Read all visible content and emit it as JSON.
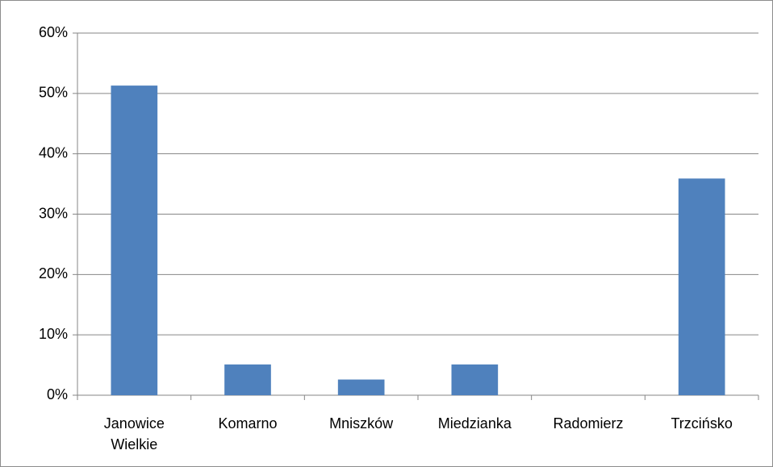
{
  "chart_data": {
    "type": "bar",
    "categories": [
      "Janowice Wielkie",
      "Komarno",
      "Mniszków",
      "Miedzianka",
      "Radomierz",
      "Trzcińsko"
    ],
    "values": [
      51.3,
      5.1,
      2.6,
      5.1,
      0,
      35.9
    ],
    "color": "#4f81bd",
    "ylim": [
      0,
      60
    ],
    "yticks": [
      {
        "value": 0,
        "label": "0%"
      },
      {
        "value": 10,
        "label": "10%"
      },
      {
        "value": 20,
        "label": "20%"
      },
      {
        "value": 30,
        "label": "30%"
      },
      {
        "value": 40,
        "label": "40%"
      },
      {
        "value": 50,
        "label": "50%"
      },
      {
        "value": 60,
        "label": "60%"
      }
    ],
    "grid": true
  }
}
